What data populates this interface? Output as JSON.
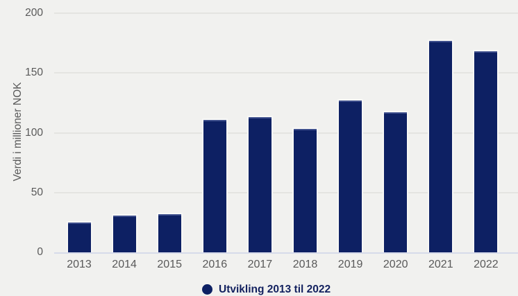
{
  "chart_data": {
    "type": "bar",
    "categories": [
      "2013",
      "2014",
      "2015",
      "2016",
      "2017",
      "2018",
      "2019",
      "2020",
      "2021",
      "2022"
    ],
    "values": [
      25,
      31,
      32,
      111,
      113,
      103,
      127,
      117,
      177,
      168
    ],
    "title": "",
    "xlabel": "",
    "ylabel": "Verdi i millioner NOK",
    "ylim": [
      0,
      200
    ],
    "yticks": [
      0,
      50,
      100,
      150,
      200
    ],
    "grid": true,
    "legend": {
      "label": "Utvikling 2013 til 2022",
      "position": "bottom"
    },
    "colors": {
      "bar": "#0d2063",
      "background": "#f1f1ef",
      "gridline": "#e4e4e1",
      "axis_line": "#d6daea",
      "tick_text": "#595959",
      "legend_text": "#13215f"
    }
  }
}
